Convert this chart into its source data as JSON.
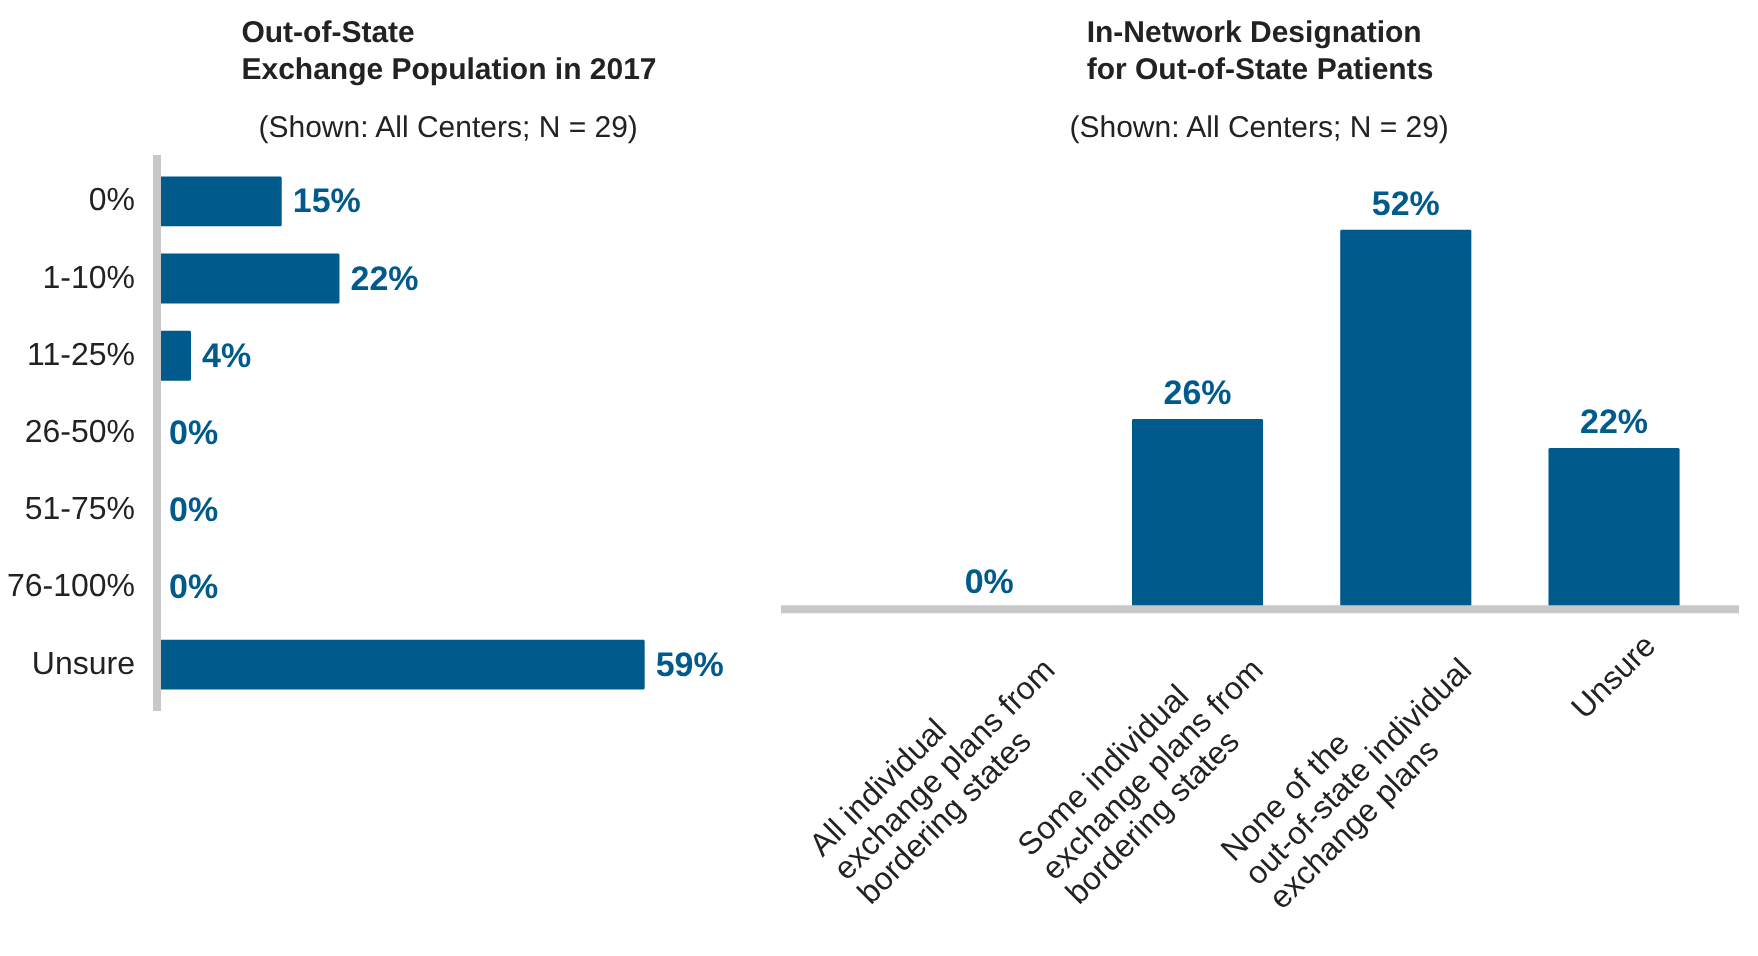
{
  "chart_data": [
    {
      "type": "bar",
      "orientation": "horizontal",
      "title": "Out-of-State\nExchange Population in 2017",
      "subtitle": "(Shown: All Centers; N = 29)",
      "categories": [
        "0%",
        "1-10%",
        "11-25%",
        "26-50%",
        "51-75%",
        "76-100%",
        "Unsure"
      ],
      "values": [
        15,
        22,
        4,
        0,
        0,
        0,
        59
      ],
      "value_labels": [
        "15%",
        "22%",
        "4%",
        "0%",
        "0%",
        "0%",
        "59%"
      ],
      "color": "#005a8c",
      "grid": false
    },
    {
      "type": "bar",
      "title": "In-Network Designation\nfor Out-of-State Patients",
      "subtitle": "(Shown: All Centers; N = 29)",
      "categories": [
        "All individual\nexchange plans from\nbordering states",
        "Some individual\nexchange plans from\nbordering states",
        "None of the\nout-of-state individual\nexchange plans",
        "Unsure"
      ],
      "values": [
        0,
        26,
        52,
        22
      ],
      "value_labels": [
        "0%",
        "26%",
        "52%",
        "22%"
      ],
      "color": "#005a8c",
      "grid": false
    }
  ]
}
